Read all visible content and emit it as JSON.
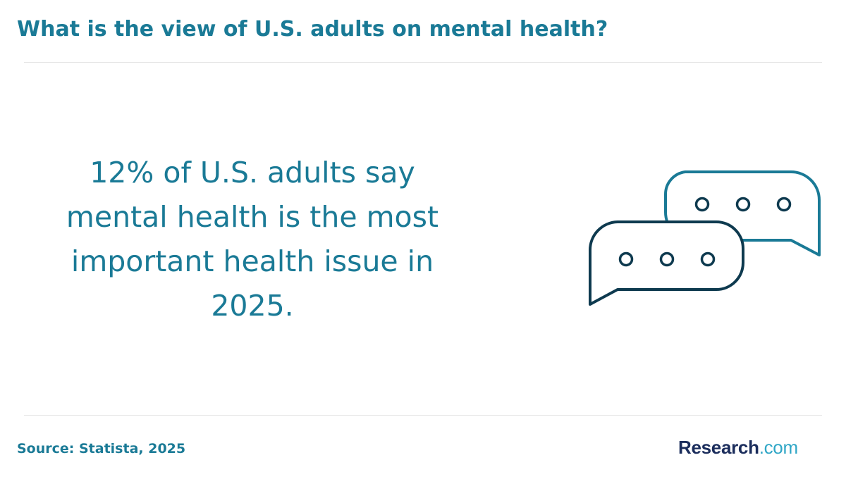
{
  "header": {
    "title": "What is the view of U.S. adults on mental health?"
  },
  "main": {
    "statement": "12% of U.S. adults say mental health is the most important health issue in 2025."
  },
  "illustration": {
    "icon": "chat-bubbles-icon",
    "colors": {
      "back_bubble": "#1a7a96",
      "front_bubble": "#0e3a4f"
    }
  },
  "footer": {
    "source": "Source: Statista, 2025",
    "logo_part1": "Research",
    "logo_part2": ".com"
  }
}
